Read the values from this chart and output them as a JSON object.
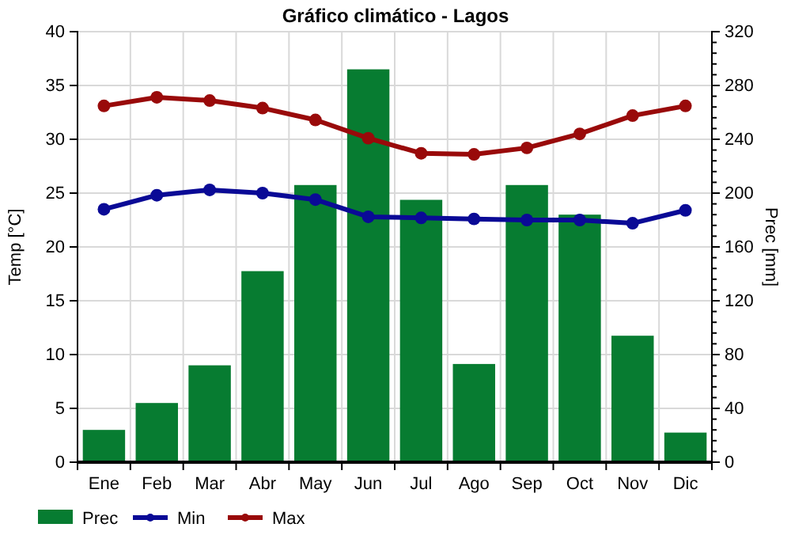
{
  "chart_data": {
    "type": "bar",
    "title": "Gráfico climático - Lagos",
    "ylabel": "Temp [°C]",
    "y2label": "Prec [mm]",
    "categories": [
      "Ene",
      "Feb",
      "Mar",
      "Abr",
      "May",
      "Jun",
      "Jul",
      "Ago",
      "Sep",
      "Oct",
      "Nov",
      "Dic"
    ],
    "series": [
      {
        "name": "Prec",
        "axis": "y2",
        "color": "#077c31",
        "values": [
          24,
          44,
          72,
          142,
          206,
          292,
          195,
          73,
          206,
          184,
          94,
          22
        ]
      },
      {
        "name": "Min",
        "type": "line",
        "color": "#0a0a96",
        "values": [
          23.5,
          24.8,
          25.3,
          25.0,
          24.4,
          22.8,
          22.7,
          22.6,
          22.5,
          22.5,
          22.2,
          23.4
        ]
      },
      {
        "name": "Max",
        "type": "line",
        "color": "#990a0a",
        "values": [
          33.1,
          33.9,
          33.6,
          32.9,
          31.8,
          30.1,
          28.7,
          28.6,
          29.2,
          30.5,
          32.2,
          33.1
        ]
      }
    ],
    "ylim": [
      0,
      40
    ],
    "yticks": [
      0,
      5,
      10,
      15,
      20,
      25,
      30,
      35,
      40
    ],
    "y2lim": [
      0,
      320
    ],
    "y2ticks": [
      0,
      {
        "value": 8,
        "label": null
      },
      {
        "value": 16,
        "label": null
      },
      {
        "value": 24,
        "label": null
      },
      {
        "value": 32,
        "label": null
      },
      40,
      {
        "value": 48,
        "label": null
      },
      {
        "value": 56,
        "label": null
      },
      {
        "value": 64,
        "label": null
      },
      {
        "value": 72,
        "label": null
      },
      80,
      {
        "value": 88,
        "label": null
      },
      {
        "value": 96,
        "label": null
      },
      {
        "value": 104,
        "label": null
      },
      {
        "value": 112,
        "label": null
      },
      120,
      {
        "value": 128,
        "label": null
      },
      {
        "value": 136,
        "label": null
      },
      {
        "value": 144,
        "label": null
      },
      {
        "value": 152,
        "label": null
      },
      160,
      {
        "value": 168,
        "label": null
      },
      {
        "value": 176,
        "label": null
      },
      {
        "value": 184,
        "label": null
      },
      {
        "value": 192,
        "label": null
      },
      200,
      {
        "value": 208,
        "label": null
      },
      {
        "value": 216,
        "label": null
      },
      {
        "value": 224,
        "label": null
      },
      {
        "value": 232,
        "label": null
      },
      240,
      {
        "value": 248,
        "label": null
      },
      {
        "value": 256,
        "label": null
      },
      {
        "value": 264,
        "label": null
      },
      {
        "value": 272,
        "label": null
      },
      280,
      {
        "value": 288,
        "label": null
      },
      {
        "value": 296,
        "label": null
      },
      {
        "value": 304,
        "label": null
      },
      {
        "value": 312,
        "label": null
      },
      320
    ],
    "grid": true,
    "legend": "bottom",
    "marker": "circle",
    "line_style": "solid"
  }
}
